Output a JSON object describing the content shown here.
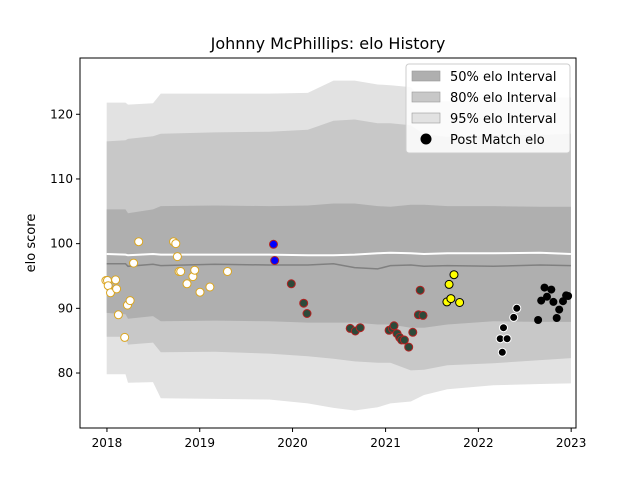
{
  "chart_data": {
    "type": "scatter",
    "title": "Johnny McPhillips: elo History",
    "xlabel": "",
    "ylabel": "elo score",
    "xlim": [
      "2017-09-17",
      "2023-01-20"
    ],
    "ylim": [
      71.5,
      128.7
    ],
    "x_ticks": [
      {
        "date": "2018-01-01",
        "label": "2018"
      },
      {
        "date": "2019-01-01",
        "label": "2019"
      },
      {
        "date": "2020-01-01",
        "label": "2020"
      },
      {
        "date": "2021-01-01",
        "label": "2021"
      },
      {
        "date": "2022-01-01",
        "label": "2022"
      },
      {
        "date": "2023-01-01",
        "label": "2023"
      }
    ],
    "y_ticks": [
      80,
      90,
      100,
      110,
      120
    ],
    "grid": false,
    "legend": {
      "placement": "top-right",
      "entries": [
        "50% elo Interval",
        "80% elo Interval",
        "95% elo Interval",
        "Post Match elo"
      ]
    },
    "colors": {
      "band_50": "#afafaf",
      "band_80": "#c8c8c8",
      "band_95": "#e2e2e2",
      "median_line": "#ffffff",
      "mean_line": "#808080",
      "season_fill": [
        "#ffffff",
        "#0000ff",
        "#2d4a3a",
        "#ffff00",
        "#000000"
      ],
      "season_edge": [
        "#daa520",
        "#b22222",
        "#b22222",
        "#000000",
        "#ffffff"
      ]
    },
    "bands": {
      "x": [
        "2017-12-31",
        "2018-03-15",
        "2018-03-25",
        "2018-07-01",
        "2018-08-01",
        "2019-03-01",
        "2019-10-01",
        "2020-03-01",
        "2020-06-10",
        "2020-09-01",
        "2020-12-01",
        "2021-01-20",
        "2021-04-10",
        "2021-06-01",
        "2021-09-01",
        "2022-03-01",
        "2022-09-01",
        "2022-12-31"
      ],
      "p95_upper": [
        121.8,
        121.8,
        121.5,
        121.7,
        123.2,
        123.2,
        123.2,
        123.3,
        125.2,
        125.2,
        124.6,
        124.5,
        124.2,
        122.0,
        122.0,
        122.3,
        122.6,
        122.6
      ],
      "p80_upper": [
        115.8,
        116.0,
        116.2,
        116.6,
        117.0,
        117.2,
        117.3,
        117.6,
        119.0,
        119.2,
        118.6,
        118.6,
        118.3,
        116.9,
        116.5,
        116.8,
        116.8,
        117.0
      ],
      "p50_upper": [
        105.3,
        105.3,
        104.7,
        105.3,
        105.8,
        105.9,
        105.8,
        105.9,
        106.2,
        106.2,
        105.8,
        105.7,
        106.0,
        106.0,
        105.8,
        105.8,
        105.7,
        105.7
      ],
      "p50_lower": [
        89.3,
        89.1,
        88.4,
        88.8,
        88.0,
        88.1,
        88.0,
        87.8,
        87.8,
        87.8,
        87.5,
        87.5,
        87.0,
        87.0,
        87.5,
        88.0,
        87.9,
        87.9
      ],
      "p80_lower": [
        85.6,
        85.6,
        84.4,
        84.7,
        83.2,
        83.3,
        83.0,
        82.6,
        82.2,
        81.8,
        81.6,
        81.6,
        80.4,
        80.5,
        81.2,
        81.5,
        82.0,
        82.3
      ],
      "p95_lower": [
        79.8,
        79.8,
        78.5,
        78.6,
        76.1,
        76.0,
        75.9,
        75.3,
        74.6,
        74.2,
        74.7,
        75.3,
        75.6,
        76.6,
        77.5,
        78.1,
        78.3,
        78.4
      ],
      "median": [
        98.4,
        98.3,
        98.2,
        98.4,
        98.3,
        98.3,
        98.3,
        98.2,
        98.2,
        98.3,
        98.5,
        98.6,
        98.5,
        98.4,
        98.5,
        98.5,
        98.6,
        98.4
      ],
      "mean": [
        96.9,
        96.9,
        96.5,
        96.8,
        96.6,
        96.8,
        96.7,
        96.7,
        96.9,
        96.3,
        96.1,
        96.6,
        96.7,
        96.5,
        96.6,
        96.5,
        96.7,
        96.6
      ]
    },
    "series": [
      {
        "x": [
          "2017-12-28",
          "2018-01-03",
          "2018-01-06",
          "2018-01-15",
          "2018-02-04",
          "2018-02-08",
          "2018-02-15",
          "2018-03-12",
          "2018-03-23",
          "2018-04-02",
          "2018-04-16",
          "2018-05-06",
          "2018-09-20",
          "2018-09-29",
          "2018-10-05",
          "2018-10-12",
          "2018-10-18",
          "2018-11-12",
          "2018-12-05",
          "2018-12-12",
          "2019-01-02",
          "2019-02-10",
          "2019-04-20"
        ],
        "y": [
          94.3,
          94.3,
          93.5,
          92.4,
          94.4,
          93.0,
          89.0,
          85.5,
          90.5,
          91.2,
          97.0,
          100.3,
          100.3,
          100.0,
          98.0,
          95.7,
          95.7,
          93.8,
          94.9,
          95.9,
          92.5,
          93.3,
          95.7
        ]
      },
      {
        "x": [
          "2019-10-18",
          "2019-10-23"
        ],
        "y": [
          99.9,
          97.4
        ]
      },
      {
        "x": [
          "2019-12-27",
          "2020-02-14",
          "2020-02-27",
          "2020-08-15",
          "2020-09-04",
          "2020-09-23",
          "2021-01-15",
          "2021-01-28",
          "2021-02-03",
          "2021-02-15",
          "2021-02-25",
          "2021-03-05",
          "2021-03-16",
          "2021-04-02",
          "2021-04-18",
          "2021-05-10",
          "2021-05-17",
          "2021-05-28"
        ],
        "y": [
          93.8,
          90.8,
          89.2,
          86.9,
          86.5,
          87.0,
          86.6,
          86.9,
          87.3,
          86.1,
          85.5,
          85.1,
          85.1,
          84.0,
          86.3,
          89.0,
          92.8,
          88.9
        ]
      },
      {
        "x": [
          "2021-08-30",
          "2021-09-08",
          "2021-09-15",
          "2021-09-27",
          "2021-10-19"
        ],
        "y": [
          91.0,
          93.7,
          91.5,
          95.2,
          90.9
        ]
      },
      {
        "x": [
          "2022-03-28",
          "2022-04-05",
          "2022-04-10",
          "2022-04-24",
          "2022-05-20",
          "2022-06-01"
        ],
        "y": [
          85.3,
          83.2,
          87.0,
          85.3,
          88.6,
          90.0
        ]
      },
      {
        "x": [
          "2022-08-24",
          "2022-09-05",
          "2022-09-18",
          "2022-09-28",
          "2022-10-15",
          "2022-10-23",
          "2022-11-05",
          "2022-11-15",
          "2022-11-30",
          "2022-12-12",
          "2022-12-20"
        ],
        "y": [
          88.2,
          91.2,
          93.2,
          91.8,
          92.9,
          91.0,
          88.5,
          89.8,
          91.1,
          92.0,
          91.9
        ]
      }
    ]
  }
}
